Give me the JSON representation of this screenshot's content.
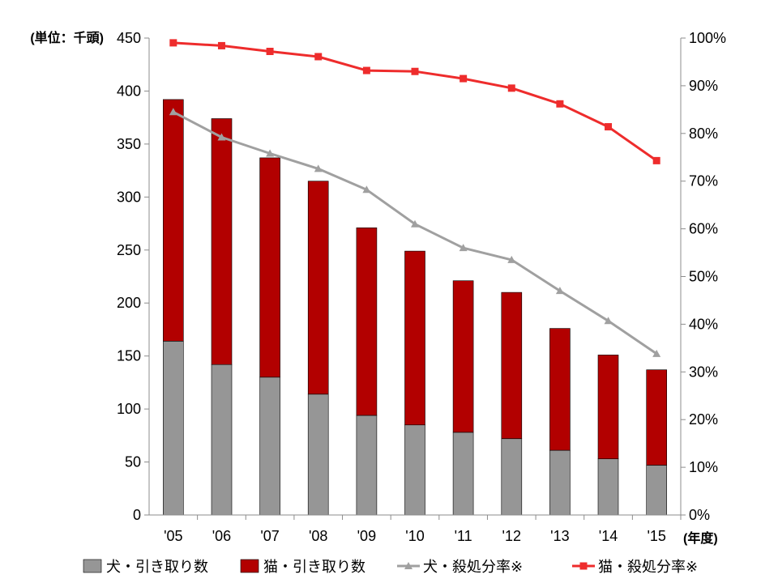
{
  "chart_data": {
    "type": "bar",
    "stacked": true,
    "categories": [
      "'05",
      "'06",
      "'07",
      "'08",
      "'09",
      "'10",
      "'11",
      "'12",
      "'13",
      "'14",
      "'15"
    ],
    "y_left": {
      "unit_label": "(単位：千頭)",
      "ylim": [
        0,
        450
      ],
      "ticks": [
        "0",
        "50",
        "100",
        "150",
        "200",
        "250",
        "300",
        "350",
        "400",
        "450"
      ]
    },
    "y_right": {
      "ylim": [
        0,
        100
      ],
      "ticks": [
        "0%",
        "10%",
        "20%",
        "30%",
        "40%",
        "50%",
        "60%",
        "70%",
        "80%",
        "90%",
        "100%"
      ]
    },
    "x_unit_label": "(年度)",
    "series": [
      {
        "name": "犬・引き取り数",
        "kind": "bar",
        "axis": "left",
        "color": "#969696",
        "values": [
          164,
          142,
          130,
          114,
          94,
          85,
          78,
          72,
          61,
          53,
          47
        ]
      },
      {
        "name": "猫・引き取り数",
        "kind": "bar",
        "axis": "left",
        "color": "#b20000",
        "values": [
          228,
          232,
          207,
          201,
          177,
          164,
          143,
          138,
          115,
          98,
          90
        ]
      },
      {
        "name": "犬・殺処分率※",
        "kind": "line",
        "marker": "triangle",
        "axis": "right",
        "color": "#a0a0a0",
        "values": [
          84.5,
          79.2,
          75.8,
          72.6,
          68.2,
          61,
          56,
          53.5,
          47,
          40.7,
          33.8
        ]
      },
      {
        "name": "猫・殺処分率※",
        "kind": "line",
        "marker": "square",
        "axis": "right",
        "color": "#ee2c2c",
        "values": [
          99,
          98.4,
          97.2,
          96.1,
          93.2,
          93,
          91.5,
          89.5,
          86.2,
          81.4,
          74.3
        ]
      }
    ],
    "grid": false,
    "legend_position": "bottom"
  }
}
